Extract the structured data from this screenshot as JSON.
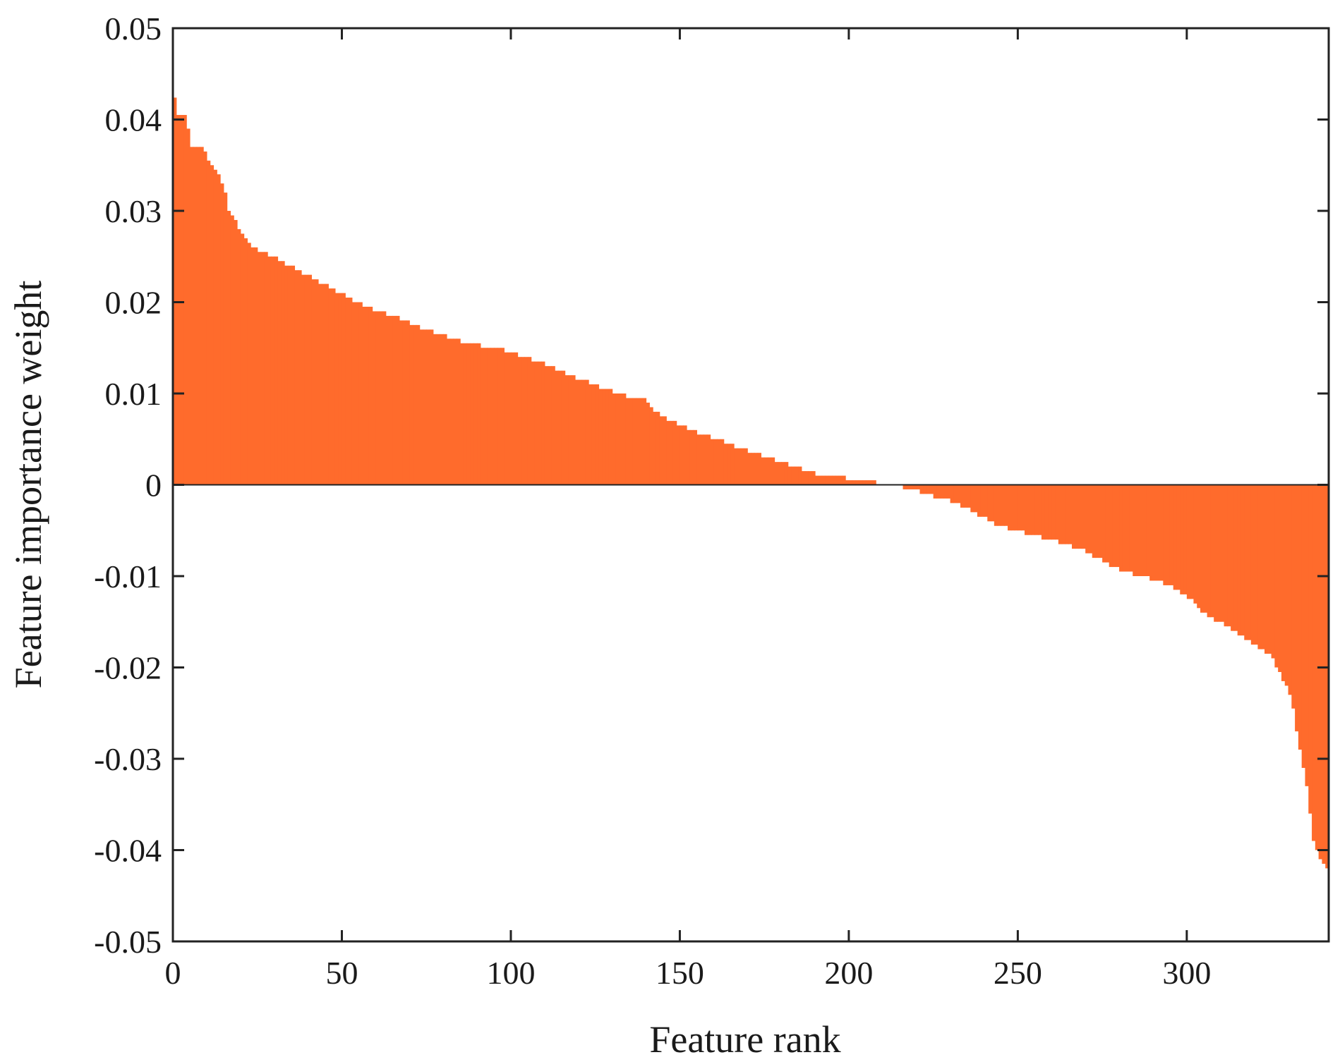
{
  "chart_data": {
    "type": "bar",
    "title": "",
    "xlabel": "Feature rank",
    "ylabel": "Feature  importance weight",
    "xlim": [
      0,
      342
    ],
    "ylim": [
      -0.05,
      0.05
    ],
    "xticks": [
      0,
      50,
      100,
      150,
      200,
      250,
      300
    ],
    "yticks": [
      0.05,
      0.04,
      0.03,
      0.02,
      0.01,
      0,
      -0.01,
      -0.02,
      -0.03,
      -0.04,
      -0.05
    ],
    "ytick_labels": [
      "0.05",
      "0.04",
      "0.03",
      "0.02",
      "0.01",
      "0",
      "-0.01",
      "-0.02",
      "-0.03",
      "-0.04",
      "-0.05"
    ],
    "grid": false,
    "bar_color": "#FF6B2C",
    "n_features": 342,
    "anchors": [
      [
        1,
        0.0424
      ],
      [
        2,
        0.0407
      ],
      [
        4,
        0.0405
      ],
      [
        6,
        0.0372
      ],
      [
        9,
        0.0368
      ],
      [
        11,
        0.0357
      ],
      [
        13,
        0.0346
      ],
      [
        15,
        0.033
      ],
      [
        16,
        0.0322
      ],
      [
        17,
        0.0298
      ],
      [
        19,
        0.0288
      ],
      [
        21,
        0.0277
      ],
      [
        22,
        0.027
      ],
      [
        23,
        0.0265
      ],
      [
        25,
        0.0258
      ],
      [
        30,
        0.025
      ],
      [
        35,
        0.024
      ],
      [
        40,
        0.023
      ],
      [
        45,
        0.022
      ],
      [
        50,
        0.021
      ],
      [
        55,
        0.02
      ],
      [
        60,
        0.0192
      ],
      [
        65,
        0.0186
      ],
      [
        70,
        0.0178
      ],
      [
        75,
        0.017
      ],
      [
        80,
        0.0165
      ],
      [
        85,
        0.0158
      ],
      [
        90,
        0.0154
      ],
      [
        95,
        0.015
      ],
      [
        100,
        0.0146
      ],
      [
        105,
        0.014
      ],
      [
        110,
        0.0133
      ],
      [
        115,
        0.0126
      ],
      [
        120,
        0.0117
      ],
      [
        125,
        0.011
      ],
      [
        130,
        0.0103
      ],
      [
        135,
        0.0097
      ],
      [
        140,
        0.0093
      ],
      [
        145,
        0.0075
      ],
      [
        150,
        0.0066
      ],
      [
        155,
        0.0058
      ],
      [
        160,
        0.0052
      ],
      [
        165,
        0.0045
      ],
      [
        170,
        0.0038
      ],
      [
        175,
        0.0032
      ],
      [
        180,
        0.0025
      ],
      [
        185,
        0.0019
      ],
      [
        190,
        0.0013
      ],
      [
        195,
        0.001
      ],
      [
        200,
        0.0007
      ],
      [
        205,
        0.0004
      ],
      [
        210,
        0.0002
      ],
      [
        215,
        -0.0001
      ],
      [
        220,
        -0.0005
      ],
      [
        225,
        -0.0012
      ],
      [
        230,
        -0.0017
      ],
      [
        235,
        -0.0025
      ],
      [
        240,
        -0.0035
      ],
      [
        245,
        -0.0045
      ],
      [
        250,
        -0.005
      ],
      [
        255,
        -0.0055
      ],
      [
        260,
        -0.006
      ],
      [
        265,
        -0.0066
      ],
      [
        270,
        -0.0072
      ],
      [
        275,
        -0.0082
      ],
      [
        280,
        -0.0092
      ],
      [
        285,
        -0.0098
      ],
      [
        290,
        -0.0103
      ],
      [
        295,
        -0.011
      ],
      [
        300,
        -0.012
      ],
      [
        305,
        -0.0138
      ],
      [
        310,
        -0.015
      ],
      [
        315,
        -0.016
      ],
      [
        320,
        -0.0174
      ],
      [
        325,
        -0.0185
      ],
      [
        330,
        -0.022
      ],
      [
        332,
        -0.0245
      ],
      [
        334,
        -0.029
      ],
      [
        336,
        -0.033
      ],
      [
        338,
        -0.039
      ],
      [
        340,
        -0.041
      ],
      [
        342,
        -0.0418
      ]
    ]
  }
}
